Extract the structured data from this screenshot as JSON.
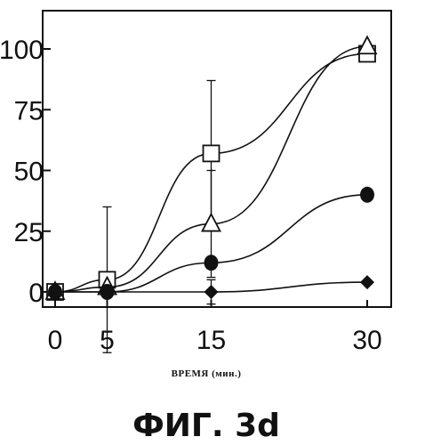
{
  "chart_data": {
    "type": "line",
    "title": "ФИГ. 3d",
    "xlabel": "ВРЕМЯ (мин.)",
    "ylabel": "",
    "x": [
      0,
      5,
      15,
      30
    ],
    "xticks": [
      0,
      5,
      15,
      30
    ],
    "yticks": [
      0,
      25,
      50,
      75,
      100
    ],
    "xlim": [
      -1,
      33
    ],
    "ylim": [
      -5,
      110
    ],
    "grid": false,
    "legend": "none",
    "series": [
      {
        "marker": "open-square",
        "values": [
          0,
          5,
          57,
          98
        ],
        "error": [
          0,
          30,
          30,
          0
        ],
        "color": "#111111"
      },
      {
        "marker": "open-triangle",
        "values": [
          0,
          2,
          28,
          101
        ],
        "error": [
          0,
          0,
          22,
          0
        ],
        "color": "#111111"
      },
      {
        "marker": "filled-circle",
        "values": [
          0,
          0,
          12,
          40
        ],
        "error": [
          0,
          0,
          0,
          0
        ],
        "color": "#111111"
      },
      {
        "marker": "filled-diamond",
        "values": [
          0,
          0,
          0,
          4
        ],
        "error": [
          0,
          0,
          5,
          0
        ],
        "color": "#111111"
      }
    ]
  }
}
